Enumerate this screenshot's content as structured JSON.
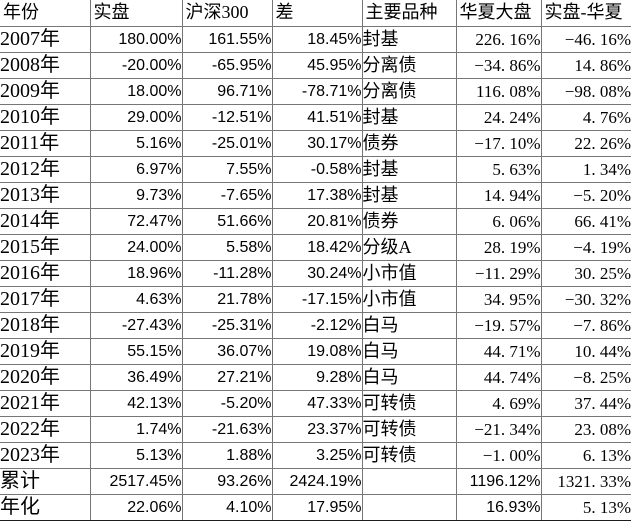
{
  "colors": {
    "background": "#ffffff",
    "text": "#000000",
    "gridline": "#767676",
    "outer_bottom_border": "#1c1c1c"
  },
  "table": {
    "columns": [
      {
        "key": "year",
        "label": "年份"
      },
      {
        "key": "actual",
        "label": "实盘"
      },
      {
        "key": "hs300",
        "label": "沪深300"
      },
      {
        "key": "diff",
        "label": "差"
      },
      {
        "key": "variety",
        "label": "主要品种"
      },
      {
        "key": "huaxia",
        "label": "华夏大盘"
      },
      {
        "key": "amh",
        "label": "实盘-华夏"
      }
    ],
    "rows": [
      {
        "year": "2007年",
        "actual": "180.00%",
        "hs300": "161.55%",
        "diff": "18.45%",
        "variety": "封基",
        "huaxia": "226.16%",
        "amh": "-46.16%"
      },
      {
        "year": "2008年",
        "actual": "-20.00%",
        "hs300": "-65.95%",
        "diff": "45.95%",
        "variety": "分离债",
        "huaxia": "-34.86%",
        "amh": "14.86%"
      },
      {
        "year": "2009年",
        "actual": "18.00%",
        "hs300": "96.71%",
        "diff": "-78.71%",
        "variety": "分离债",
        "huaxia": "116.08%",
        "amh": "-98.08%"
      },
      {
        "year": "2010年",
        "actual": "29.00%",
        "hs300": "-12.51%",
        "diff": "41.51%",
        "variety": "封基",
        "huaxia": "24.24%",
        "amh": "4.76%"
      },
      {
        "year": "2011年",
        "actual": "5.16%",
        "hs300": "-25.01%",
        "diff": "30.17%",
        "variety": "债券",
        "huaxia": "-17.10%",
        "amh": "22.26%"
      },
      {
        "year": "2012年",
        "actual": "6.97%",
        "hs300": "7.55%",
        "diff": "-0.58%",
        "variety": "封基",
        "huaxia": "5.63%",
        "amh": "1.34%"
      },
      {
        "year": "2013年",
        "actual": "9.73%",
        "hs300": "-7.65%",
        "diff": "17.38%",
        "variety": "封基",
        "huaxia": "14.94%",
        "amh": "-5.20%"
      },
      {
        "year": "2014年",
        "actual": "72.47%",
        "hs300": "51.66%",
        "diff": "20.81%",
        "variety": "债券",
        "huaxia": "6.06%",
        "amh": "66.41%"
      },
      {
        "year": "2015年",
        "actual": "24.00%",
        "hs300": "5.58%",
        "diff": "18.42%",
        "variety": "分级A",
        "huaxia": "28.19%",
        "amh": "-4.19%"
      },
      {
        "year": "2016年",
        "actual": "18.96%",
        "hs300": "-11.28%",
        "diff": "30.24%",
        "variety": "小市值",
        "huaxia": "-11.29%",
        "amh": "30.25%"
      },
      {
        "year": "2017年",
        "actual": "4.63%",
        "hs300": "21.78%",
        "diff": "-17.15%",
        "variety": "小市值",
        "huaxia": "34.95%",
        "amh": "-30.32%"
      },
      {
        "year": "2018年",
        "actual": "-27.43%",
        "hs300": "-25.31%",
        "diff": "-2.12%",
        "variety": "白马",
        "huaxia": "-19.57%",
        "amh": "-7.86%"
      },
      {
        "year": "2019年",
        "actual": "55.15%",
        "hs300": "36.07%",
        "diff": "19.08%",
        "variety": "白马",
        "huaxia": "44.71%",
        "amh": "10.44%"
      },
      {
        "year": "2020年",
        "actual": "36.49%",
        "hs300": "27.21%",
        "diff": "9.28%",
        "variety": "白马",
        "huaxia": "44.74%",
        "amh": "-8.25%"
      },
      {
        "year": "2021年",
        "actual": "42.13%",
        "hs300": "-5.20%",
        "diff": "47.33%",
        "variety": "可转债",
        "huaxia": "4.69%",
        "amh": "37.44%"
      },
      {
        "year": "2022年",
        "actual": "1.74%",
        "hs300": "-21.63%",
        "diff": "23.37%",
        "variety": "可转债",
        "huaxia": "-21.34%",
        "amh": "23.08%"
      },
      {
        "year": "2023年",
        "actual": "5.13%",
        "hs300": "1.88%",
        "diff": "3.25%",
        "variety": "可转债",
        "huaxia": "-1.00%",
        "amh": "6.13%"
      },
      {
        "year": "累计",
        "actual": "2517.45%",
        "hs300": "93.26%",
        "diff": "2424.19%",
        "variety": "",
        "huaxia": "1196.12%",
        "amh": "1321.33%"
      },
      {
        "year": "年化",
        "actual": "22.06%",
        "hs300": "4.10%",
        "diff": "17.95%",
        "variety": "",
        "huaxia": "16.93%",
        "amh": "5.13%"
      }
    ]
  }
}
